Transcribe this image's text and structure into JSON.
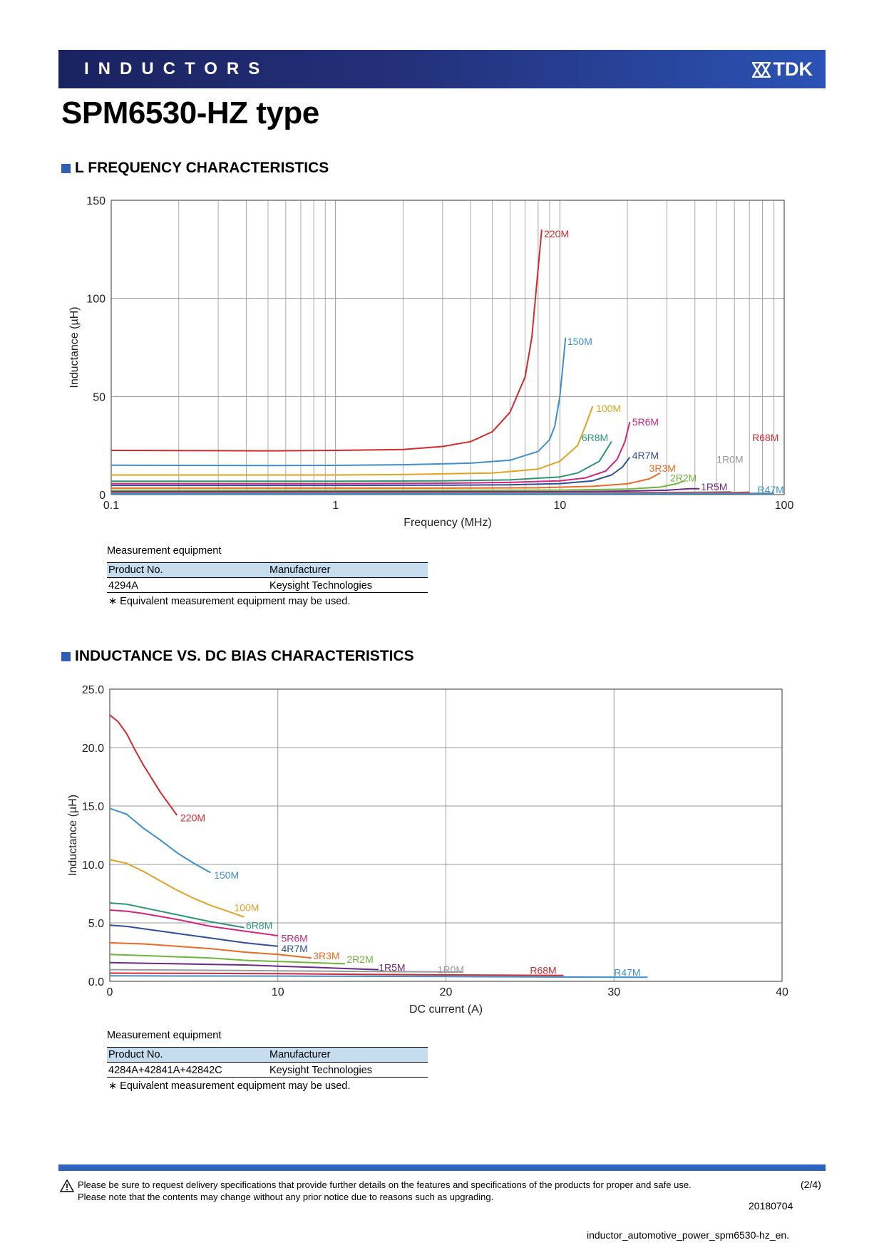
{
  "header": {
    "category": "INDUCTORS",
    "logo_text": "TDK"
  },
  "title": "SPM6530-HZ type",
  "sections": {
    "freq": "L FREQUENCY CHARACTERISTICS",
    "bias": "INDUCTANCE VS. DC BIAS CHARACTERISTICS"
  },
  "measurement_freq": {
    "label": "Measurement equipment",
    "col_product": "Product No.",
    "col_manufacturer": "Manufacturer",
    "product": "4294A",
    "manufacturer": "Keysight Technologies",
    "note": "∗ Equivalent measurement equipment may be used."
  },
  "measurement_bias": {
    "label": "Measurement equipment",
    "col_product": "Product No.",
    "col_manufacturer": "Manufacturer",
    "product": "4284A+42841A+42842C",
    "manufacturer": "Keysight Technologies",
    "note": "∗ Equivalent measurement equipment may be used."
  },
  "footer": {
    "line1": "Please be sure to request delivery specifications that provide further details on the features and specifications of the products for proper and safe use.",
    "line2": "Please note that the contents may change without any prior notice due to reasons such as upgrading.",
    "page": "(2/4)",
    "date": "20180704",
    "filename": "inductor_automotive_power_spm6530-hz_en."
  },
  "chart_data": [
    {
      "type": "line",
      "title": "L FREQUENCY CHARACTERISTICS",
      "xlabel": "Frequency (MHz)",
      "ylabel": "Inductance (µH)",
      "xscale": "log",
      "xlim": [
        0.1,
        100
      ],
      "ylim": [
        0,
        150
      ],
      "xticks": [
        0.1,
        1,
        10,
        100
      ],
      "xtick_labels": [
        "0.1",
        "1",
        "10",
        "100"
      ],
      "yticks": [
        0,
        50,
        100,
        150
      ],
      "ytick_labels": [
        "0",
        "50",
        "100",
        "150"
      ],
      "grid": true,
      "series": [
        {
          "name": "220M",
          "color": "#d32a2e",
          "x": [
            0.1,
            0.5,
            1,
            2,
            3,
            4,
            5,
            6,
            7,
            7.5,
            8,
            8.3
          ],
          "y": [
            22.5,
            22.3,
            22.5,
            23,
            24.5,
            27,
            32,
            42,
            60,
            80,
            115,
            135
          ]
        },
        {
          "name": "150M",
          "color": "#3f8fce",
          "x": [
            0.1,
            0.5,
            1,
            2,
            4,
            6,
            8,
            9,
            9.5,
            10,
            10.3,
            10.6
          ],
          "y": [
            15,
            14.8,
            14.9,
            15.2,
            16,
            17.5,
            22,
            28,
            35,
            50,
            65,
            80
          ]
        },
        {
          "name": "100M",
          "color": "#e2a223",
          "x": [
            0.1,
            1,
            2,
            5,
            8,
            10,
            12,
            13,
            14
          ],
          "y": [
            10,
            10,
            10.2,
            11,
            13,
            17,
            25,
            35,
            45
          ]
        },
        {
          "name": "6R8M",
          "color": "#2f9477",
          "x": [
            0.1,
            1,
            3,
            6,
            10,
            12,
            15,
            17
          ],
          "y": [
            6.8,
            6.8,
            7,
            7.5,
            9,
            11,
            17,
            27
          ]
        },
        {
          "name": "5R6M",
          "color": "#d0267f",
          "x": [
            0.1,
            1,
            3,
            6,
            10,
            13,
            16,
            18,
            19.5,
            20.5
          ],
          "y": [
            5.6,
            5.6,
            5.8,
            6.2,
            7,
            8.5,
            12,
            18,
            27,
            37
          ]
        },
        {
          "name": "4R7M",
          "color": "#2f4f9a",
          "x": [
            0.1,
            1,
            3,
            6,
            10,
            14,
            17,
            19,
            20.5
          ],
          "y": [
            4.7,
            4.7,
            4.8,
            5,
            5.6,
            7,
            10,
            14,
            19
          ]
        },
        {
          "name": "3R3M",
          "color": "#e86c24",
          "x": [
            0.1,
            1,
            3,
            8,
            14,
            20,
            25,
            28
          ],
          "y": [
            3.3,
            3.3,
            3.3,
            3.5,
            4.2,
            5.5,
            8,
            11
          ]
        },
        {
          "name": "2R2M",
          "color": "#6db53b",
          "x": [
            0.1,
            1,
            5,
            10,
            20,
            28,
            33,
            36
          ],
          "y": [
            2.2,
            2.2,
            2.2,
            2.3,
            2.8,
            3.8,
            5.5,
            7
          ]
        },
        {
          "name": "1R5M",
          "color": "#6b2a86",
          "x": [
            0.1,
            1,
            5,
            10,
            20,
            30,
            38,
            42
          ],
          "y": [
            1.5,
            1.5,
            1.5,
            1.5,
            1.8,
            2.2,
            3,
            3
          ]
        },
        {
          "name": "1R0M",
          "color": "#9a9a9a",
          "x": [
            0.1,
            1,
            10,
            30,
            50,
            58
          ],
          "y": [
            1.0,
            1.0,
            1.0,
            1.1,
            1.3,
            1.5
          ]
        },
        {
          "name": "R68M",
          "color": "#d32a2e",
          "x": [
            0.1,
            1,
            10,
            40,
            60,
            70
          ],
          "y": [
            0.7,
            0.7,
            0.7,
            0.8,
            1,
            1.2
          ]
        },
        {
          "name": "R47M",
          "color": "#3f8fce",
          "x": [
            0.1,
            1,
            10,
            50,
            80,
            90
          ],
          "y": [
            0.47,
            0.47,
            0.47,
            0.5,
            0.6,
            0.7
          ]
        }
      ],
      "labels": [
        {
          "text": "220M",
          "x": 8.5,
          "y": 133
        },
        {
          "text": "150M",
          "x": 10.8,
          "y": 78
        },
        {
          "text": "100M",
          "x": 14.5,
          "y": 44
        },
        {
          "text": "5R6M",
          "x": 21,
          "y": 37
        },
        {
          "text": "6R8M",
          "x": 12.5,
          "y": 29
        },
        {
          "text": "R68M",
          "x": 72,
          "y": 29
        },
        {
          "text": "4R7M",
          "x": 21,
          "y": 20
        },
        {
          "text": "1R0M",
          "x": 50,
          "y": 18
        },
        {
          "text": "3R3M",
          "x": 25,
          "y": 13.5
        },
        {
          "text": "2R2M",
          "x": 31,
          "y": 8.5
        },
        {
          "text": "1R5M",
          "x": 42.5,
          "y": 4
        },
        {
          "text": "R47M",
          "x": 76,
          "y": 2.5
        }
      ]
    },
    {
      "type": "line",
      "title": "INDUCTANCE VS. DC BIAS CHARACTERISTICS",
      "xlabel": "DC current (A)",
      "ylabel": "Inductance (µH)",
      "xlim": [
        0,
        40
      ],
      "ylim": [
        0,
        25
      ],
      "xticks": [
        0,
        10,
        20,
        30,
        40
      ],
      "xtick_labels": [
        "0",
        "10",
        "20",
        "30",
        "40"
      ],
      "yticks": [
        0,
        5,
        10,
        15,
        20,
        25
      ],
      "ytick_labels": [
        "0.0",
        "5.0",
        "10.0",
        "15.0",
        "20.0",
        "25.0"
      ],
      "grid": true,
      "series": [
        {
          "name": "220M",
          "color": "#d32a2e",
          "x": [
            0,
            0.5,
            1,
            1.5,
            2,
            3,
            4
          ],
          "y": [
            22.8,
            22.2,
            21.2,
            19.8,
            18.5,
            16.2,
            14.2
          ]
        },
        {
          "name": "150M",
          "color": "#3f8fce",
          "x": [
            0,
            1,
            2,
            3,
            4,
            5,
            6
          ],
          "y": [
            14.8,
            14.3,
            13.1,
            12.1,
            11,
            10.1,
            9.3
          ]
        },
        {
          "name": "100M",
          "color": "#e2a223",
          "x": [
            0,
            1,
            2,
            3,
            4,
            5,
            6,
            7,
            8
          ],
          "y": [
            10.4,
            10.1,
            9.4,
            8.6,
            7.8,
            7.1,
            6.5,
            6,
            5.5
          ]
        },
        {
          "name": "6R8M",
          "color": "#2f9477",
          "x": [
            0,
            1,
            2,
            4,
            6,
            8
          ],
          "y": [
            6.7,
            6.6,
            6.3,
            5.7,
            5.1,
            4.6
          ]
        },
        {
          "name": "5R6M",
          "color": "#d0267f",
          "x": [
            0,
            1,
            2,
            4,
            6,
            8,
            10
          ],
          "y": [
            6.1,
            6.0,
            5.8,
            5.3,
            4.7,
            4.3,
            3.9
          ]
        },
        {
          "name": "4R7M",
          "color": "#2f4f9a",
          "x": [
            0,
            1,
            2,
            4,
            6,
            8,
            10
          ],
          "y": [
            4.8,
            4.7,
            4.5,
            4.1,
            3.7,
            3.3,
            3.0
          ]
        },
        {
          "name": "3R3M",
          "color": "#e86c24",
          "x": [
            0,
            2,
            4,
            6,
            8,
            10,
            12
          ],
          "y": [
            3.3,
            3.2,
            3.0,
            2.8,
            2.5,
            2.3,
            2.0
          ]
        },
        {
          "name": "2R2M",
          "color": "#6db53b",
          "x": [
            0,
            2,
            4,
            6,
            8,
            10,
            12,
            14
          ],
          "y": [
            2.3,
            2.2,
            2.1,
            2.0,
            1.8,
            1.7,
            1.6,
            1.5
          ]
        },
        {
          "name": "1R5M",
          "color": "#6b2a86",
          "x": [
            0,
            2,
            4,
            6,
            8,
            10,
            12,
            14,
            16
          ],
          "y": [
            1.6,
            1.55,
            1.5,
            1.45,
            1.4,
            1.3,
            1.2,
            1.1,
            1.0
          ]
        },
        {
          "name": "1R0M",
          "color": "#9a9a9a",
          "x": [
            0,
            5,
            10,
            15,
            21
          ],
          "y": [
            1.0,
            0.95,
            0.9,
            0.85,
            0.8
          ]
        },
        {
          "name": "R68M",
          "color": "#d32a2e",
          "x": [
            0,
            5,
            10,
            15,
            20,
            27
          ],
          "y": [
            0.7,
            0.68,
            0.65,
            0.6,
            0.55,
            0.5
          ]
        },
        {
          "name": "R47M",
          "color": "#3f8fce",
          "x": [
            0,
            5,
            10,
            15,
            20,
            25,
            32
          ],
          "y": [
            0.47,
            0.46,
            0.45,
            0.43,
            0.41,
            0.38,
            0.35
          ]
        }
      ],
      "labels": [
        {
          "text": "220M",
          "x": 4.2,
          "y": 14
        },
        {
          "text": "150M",
          "x": 6.2,
          "y": 9.1
        },
        {
          "text": "100M",
          "x": 7.4,
          "y": 6.3
        },
        {
          "text": "6R8M",
          "x": 8.1,
          "y": 4.8
        },
        {
          "text": "5R6M",
          "x": 10.2,
          "y": 3.7
        },
        {
          "text": "4R7M",
          "x": 10.2,
          "y": 2.8
        },
        {
          "text": "3R3M",
          "x": 12.1,
          "y": 2.2
        },
        {
          "text": "2R2M",
          "x": 14.1,
          "y": 1.9
        },
        {
          "text": "1R5M",
          "x": 16,
          "y": 1.2
        },
        {
          "text": "1R0M",
          "x": 19.5,
          "y": 1.0
        },
        {
          "text": "R68M",
          "x": 25,
          "y": 0.95
        },
        {
          "text": "R47M",
          "x": 30,
          "y": 0.75
        }
      ]
    }
  ]
}
